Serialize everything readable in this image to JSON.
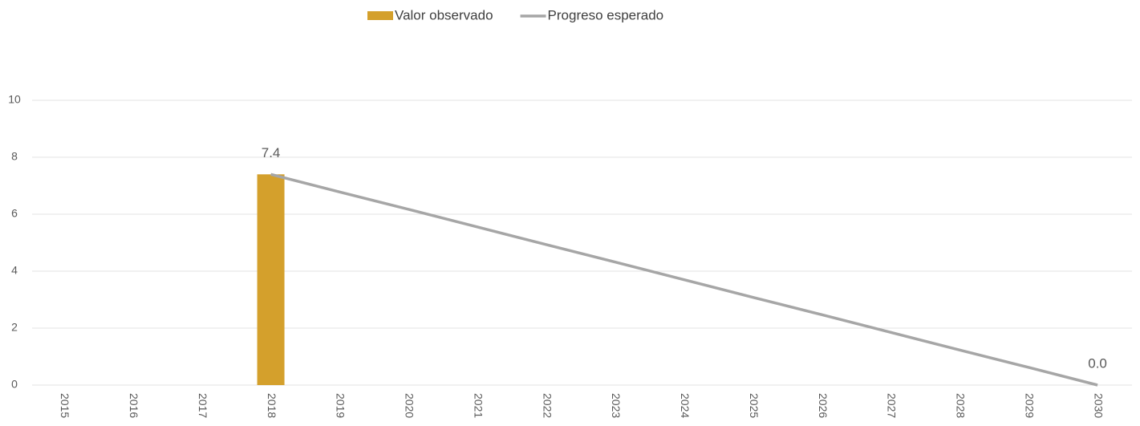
{
  "chart_data": {
    "type": "bar",
    "categories": [
      "2015",
      "2016",
      "2017",
      "2018",
      "2019",
      "2020",
      "2021",
      "2022",
      "2023",
      "2024",
      "2025",
      "2026",
      "2027",
      "2028",
      "2029",
      "2030"
    ],
    "series": [
      {
        "name": "Valor observado",
        "type": "bar",
        "color": "#d4a02c",
        "values": [
          null,
          null,
          null,
          7.4,
          null,
          null,
          null,
          null,
          null,
          null,
          null,
          null,
          null,
          null,
          null,
          null
        ],
        "value_labels": [
          null,
          null,
          null,
          "7.4",
          null,
          null,
          null,
          null,
          null,
          null,
          null,
          null,
          null,
          null,
          null,
          null
        ]
      },
      {
        "name": "Progreso esperado",
        "type": "line",
        "color": "#a6a6a6",
        "values": [
          null,
          null,
          null,
          7.4,
          6.78,
          6.17,
          5.55,
          4.93,
          4.32,
          3.7,
          3.08,
          2.47,
          1.85,
          1.23,
          0.62,
          0
        ],
        "value_labels": [
          null,
          null,
          null,
          null,
          null,
          null,
          null,
          null,
          null,
          null,
          null,
          null,
          null,
          null,
          null,
          "0.0"
        ]
      }
    ],
    "ylim": [
      0,
      10
    ],
    "yticks": [
      0,
      2,
      4,
      6,
      8,
      10
    ],
    "grid": true,
    "legend": "top"
  }
}
